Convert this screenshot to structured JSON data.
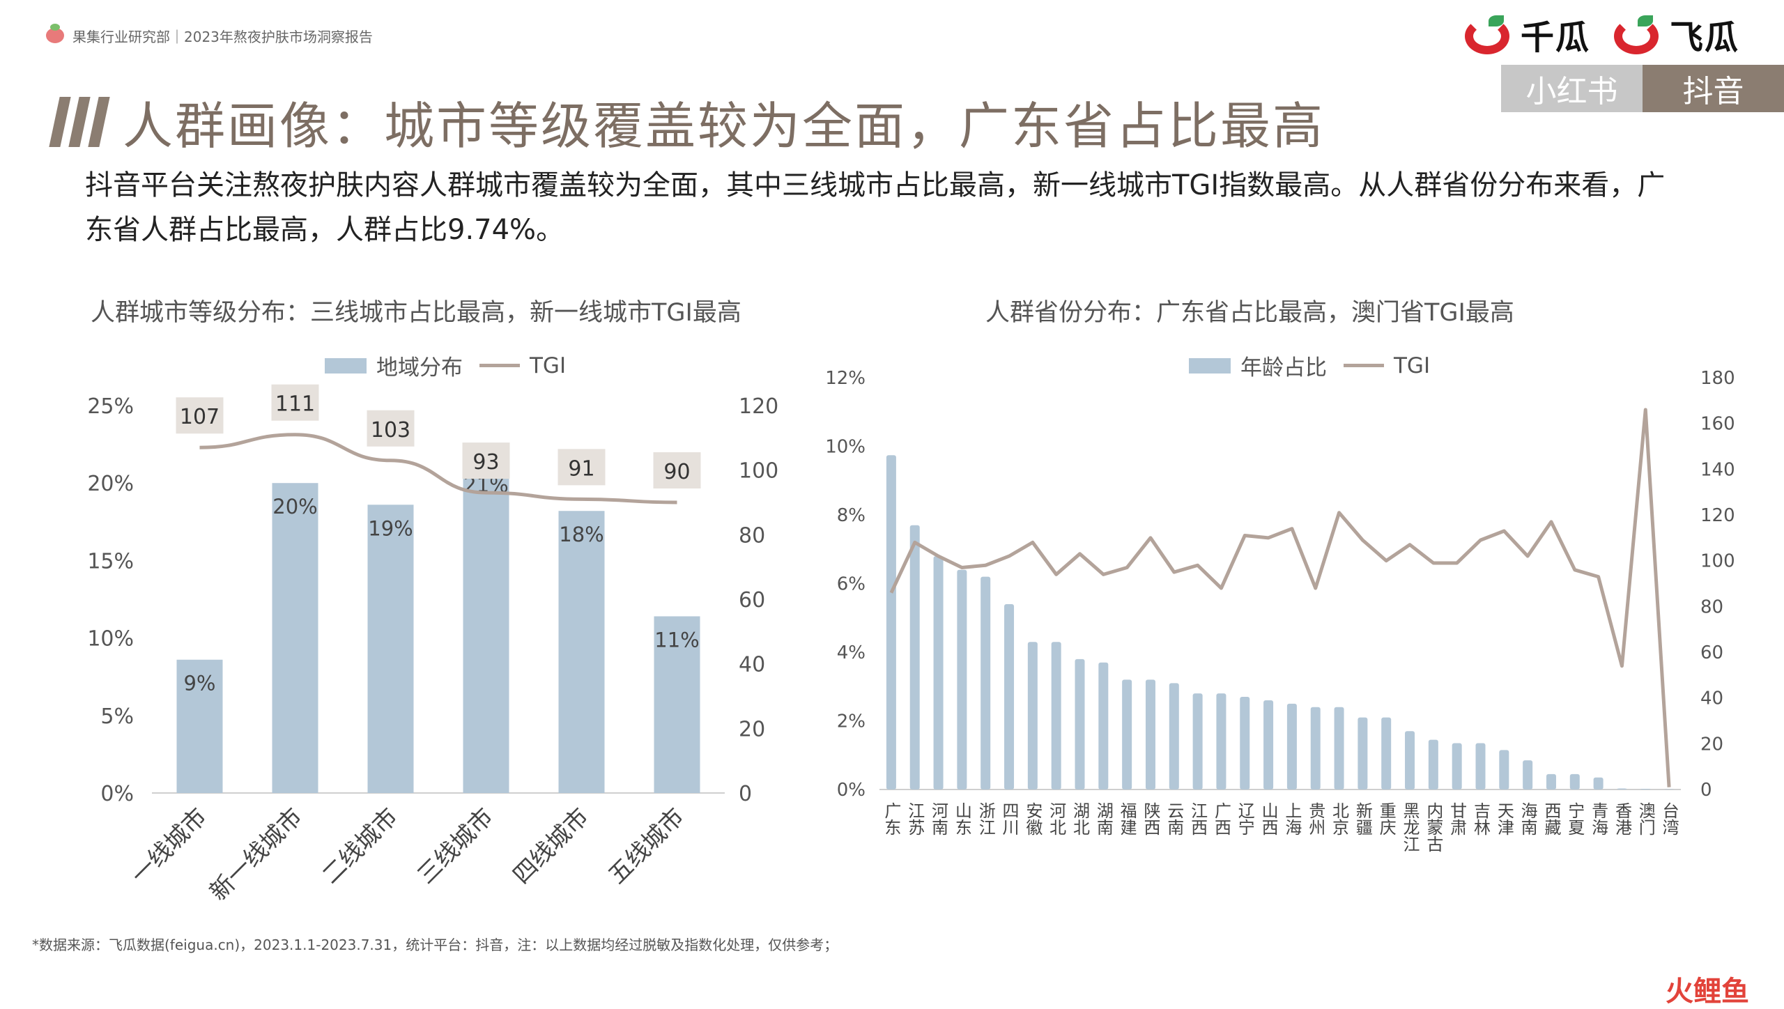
{
  "header": {
    "source_line": "果集行业研究部｜2023年熬夜护肤市场洞察报告",
    "brand1": "千瓜",
    "brand2": "飞瓜",
    "tabs": [
      {
        "label": "小红书",
        "active": false
      },
      {
        "label": "抖音",
        "active": true
      }
    ]
  },
  "page": {
    "title": "人群画像：城市等级覆盖较为全面，广东省占比最高",
    "description": "抖音平台关注熬夜护肤内容人群城市覆盖较为全面，其中三线城市占比最高，新一线城市TGI指数最高。从人群省份分布来看，广东省人群占比最高，人群占比9.74%。"
  },
  "colors": {
    "bar": "#b3c7d7",
    "line": "#b3a39a",
    "label_bg": "#e6e1dc",
    "accent": "#8b7d71"
  },
  "chart_data": [
    {
      "type": "bar",
      "title": "人群城市等级分布：三线城市占比最高，新一线城市TGI最高",
      "legend": {
        "position": "top",
        "bar_label": "地域分布",
        "line_label": "TGI"
      },
      "categories": [
        "一线城市",
        "新一线城市",
        "二线城市",
        "三线城市",
        "四线城市",
        "五线城市"
      ],
      "series": [
        {
          "name": "地域分布",
          "type": "bar",
          "axis": "left",
          "values": [
            8.6,
            20.0,
            18.6,
            21.4,
            18.2,
            11.4
          ],
          "labels": [
            "9%",
            "20%",
            "19%",
            "21%",
            "18%",
            "11%"
          ]
        },
        {
          "name": "TGI",
          "type": "line",
          "axis": "right",
          "values": [
            107,
            111,
            103,
            93,
            91,
            90
          ],
          "labels": [
            "107",
            "111",
            "103",
            "93",
            "91",
            "90"
          ]
        }
      ],
      "y_left": {
        "min": 0,
        "max": 25,
        "ticks": [
          "0%",
          "5%",
          "10%",
          "15%",
          "20%",
          "25%"
        ]
      },
      "y_right": {
        "min": 0,
        "max": 120,
        "ticks": [
          "0",
          "20",
          "40",
          "60",
          "80",
          "100",
          "120"
        ]
      }
    },
    {
      "type": "bar",
      "title": "人群省份分布：广东省占比最高，澳门省TGI最高",
      "legend": {
        "position": "top",
        "bar_label": "年龄占比",
        "line_label": "TGI"
      },
      "categories": [
        "广东",
        "江苏",
        "河南",
        "山东",
        "浙江",
        "四川",
        "安徽",
        "河北",
        "湖北",
        "湖南",
        "福建",
        "陕西",
        "云南",
        "江西",
        "广西",
        "辽宁",
        "山西",
        "上海",
        "贵州",
        "北京",
        "新疆",
        "重庆",
        "黑龙江",
        "内蒙古",
        "甘肃",
        "吉林",
        "天津",
        "海南",
        "西藏",
        "宁夏",
        "青海",
        "香港",
        "澳门",
        "台湾"
      ],
      "series": [
        {
          "name": "年龄占比",
          "type": "bar",
          "axis": "left",
          "values": [
            9.74,
            7.7,
            6.8,
            6.4,
            6.2,
            5.4,
            4.3,
            4.3,
            3.8,
            3.7,
            3.2,
            3.2,
            3.1,
            2.8,
            2.8,
            2.7,
            2.6,
            2.5,
            2.4,
            2.4,
            2.1,
            2.1,
            1.7,
            1.45,
            1.35,
            1.35,
            1.15,
            0.85,
            0.45,
            0.45,
            0.35,
            0.03,
            0.02,
            0.01
          ]
        },
        {
          "name": "TGI",
          "type": "line",
          "axis": "right",
          "values": [
            86,
            108,
            102,
            97,
            98,
            102,
            108,
            94,
            103,
            94,
            97,
            110,
            95,
            98,
            88,
            111,
            110,
            114,
            88,
            121,
            109,
            100,
            107,
            99,
            99,
            109,
            113,
            102,
            117,
            96,
            93,
            54,
            166,
            1
          ]
        }
      ],
      "y_left": {
        "min": 0,
        "max": 12,
        "ticks": [
          "0%",
          "2%",
          "4%",
          "6%",
          "8%",
          "10%",
          "12%"
        ]
      },
      "y_right": {
        "min": 0,
        "max": 180,
        "ticks": [
          "0",
          "20",
          "40",
          "60",
          "80",
          "100",
          "120",
          "140",
          "160",
          "180"
        ]
      }
    }
  ],
  "footer": {
    "note": "*数据来源：飞瓜数据(feigua.cn)，2023.1.1-2023.7.31，统计平台：抖音，注：以上数据均经过脱敏及指数化处理，仅供参考；",
    "corner_logo": "火鲤鱼"
  }
}
